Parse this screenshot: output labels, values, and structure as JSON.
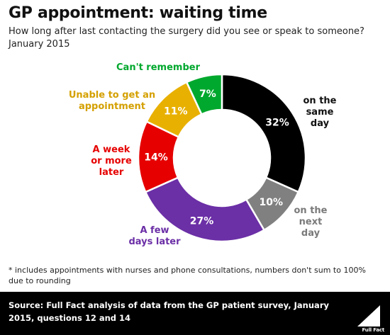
{
  "title": "GP appointment: waiting time",
  "subtitle": "How long after last contacting the surgery did you see or speak to someone? January 2015",
  "chart_data": {
    "type": "pie",
    "style": "donut",
    "start_angle_deg": 0,
    "direction": "clockwise",
    "slices": [
      {
        "label": [
          "on the",
          "same",
          "day"
        ],
        "value": 32,
        "value_label": "32%",
        "color": "#000000",
        "label_color": "#111111",
        "value_color": "#ffffff"
      },
      {
        "label": [
          "on the",
          "next",
          "day"
        ],
        "value": 10,
        "value_label": "10%",
        "color": "#808080",
        "label_color": "#7a7a7a",
        "value_color": "#ffffff"
      },
      {
        "label": [
          "A few",
          "days later"
        ],
        "value": 27,
        "value_label": "27%",
        "color": "#6b2fa6",
        "label_color": "#6b2fa6",
        "value_color": "#ffffff"
      },
      {
        "label": [
          "A week",
          "or more",
          "later"
        ],
        "value": 14,
        "value_label": "14%",
        "color": "#e60000",
        "label_color": "#e60000",
        "value_color": "#ffffff"
      },
      {
        "label": [
          "Unable to get an",
          "appointment"
        ],
        "value": 11,
        "value_label": "11%",
        "color": "#e8b000",
        "label_color": "#d4a000",
        "value_color": "#ffffff"
      },
      {
        "label": [
          "Can't remember"
        ],
        "value": 7,
        "value_label": "7%",
        "color": "#00a82d",
        "label_color": "#00a82d",
        "value_color": "#ffffff"
      }
    ]
  },
  "footnote": "* includes appointments with nurses and phone consultations, numbers don't sum to 100% due to rounding",
  "source": {
    "prefix": "Source:",
    "text": " Full Fact analysis of data from the GP patient survey, January 2015, questions 12 and 14"
  },
  "logo": {
    "text": "Full Fact",
    "name": "full-fact-logo"
  }
}
